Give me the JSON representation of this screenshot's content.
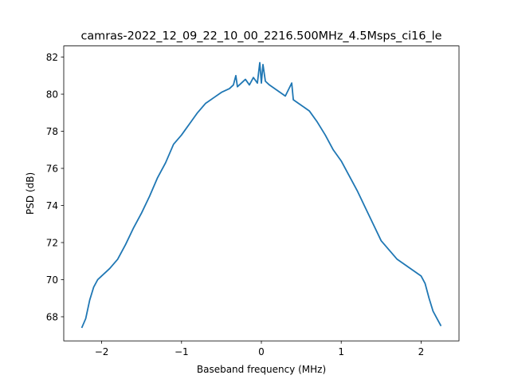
{
  "chart_data": {
    "type": "line",
    "title": "camras-2022_12_09_22_10_00_2216.500MHz_4.5Msps_ci16_le",
    "xlabel": "Baseband frequency (MHz)",
    "ylabel": "PSD (dB)",
    "xlim": [
      -2.475,
      2.475
    ],
    "ylim": [
      66.7,
      82.6
    ],
    "xticks": [
      -2,
      -1,
      0,
      1,
      2
    ],
    "xtick_labels": [
      "−2",
      "−1",
      "0",
      "1",
      "2"
    ],
    "yticks": [
      68,
      70,
      72,
      74,
      76,
      78,
      80,
      82
    ],
    "ytick_labels": [
      "68",
      "70",
      "72",
      "74",
      "76",
      "78",
      "80",
      "82"
    ],
    "grid": false,
    "legend": "none",
    "series": [
      {
        "color": "#1f77b4",
        "x": [
          -2.25,
          -2.2,
          -2.15,
          -2.1,
          -2.05,
          -2.0,
          -1.9,
          -1.8,
          -1.7,
          -1.6,
          -1.5,
          -1.4,
          -1.3,
          -1.2,
          -1.1,
          -1.0,
          -0.95,
          -0.9,
          -0.8,
          -0.7,
          -0.6,
          -0.5,
          -0.4,
          -0.35,
          -0.32,
          -0.3,
          -0.25,
          -0.2,
          -0.15,
          -0.1,
          -0.05,
          -0.02,
          0.0,
          0.02,
          0.05,
          0.1,
          0.2,
          0.3,
          0.38,
          0.4,
          0.5,
          0.6,
          0.7,
          0.8,
          0.9,
          1.0,
          1.1,
          1.2,
          1.3,
          1.4,
          1.5,
          1.6,
          1.7,
          1.8,
          1.9,
          2.0,
          2.05,
          2.1,
          2.15,
          2.2,
          2.25
        ],
        "y": [
          67.4,
          67.9,
          68.9,
          69.6,
          70.0,
          70.2,
          70.6,
          71.1,
          71.9,
          72.8,
          73.6,
          74.5,
          75.5,
          76.3,
          77.3,
          77.8,
          78.1,
          78.4,
          79.0,
          79.5,
          79.8,
          80.1,
          80.3,
          80.5,
          81.0,
          80.4,
          80.6,
          80.8,
          80.5,
          80.9,
          80.6,
          81.7,
          80.6,
          81.6,
          80.7,
          80.5,
          80.2,
          79.9,
          80.6,
          79.7,
          79.4,
          79.1,
          78.5,
          77.8,
          77.0,
          76.4,
          75.6,
          74.8,
          73.9,
          73.0,
          72.1,
          71.6,
          71.1,
          70.8,
          70.5,
          70.2,
          69.8,
          69.0,
          68.3,
          67.9,
          67.5
        ]
      }
    ]
  }
}
